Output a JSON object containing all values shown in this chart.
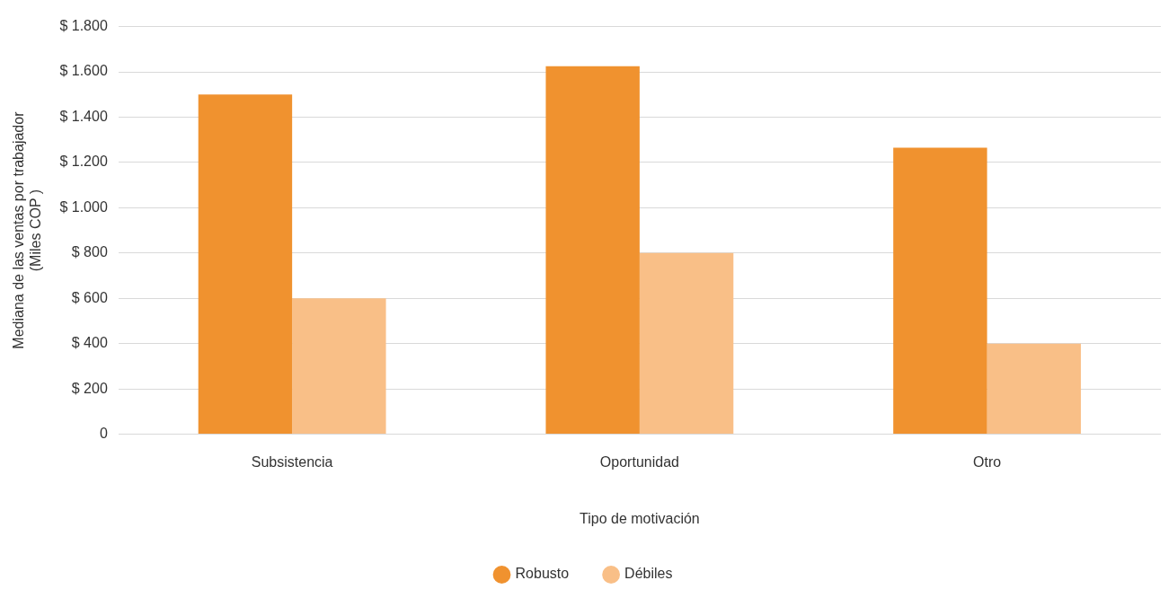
{
  "chart_data": {
    "type": "bar",
    "xlabel": "Tipo de motivación",
    "ylabel": "Mediana de las ventas por trabajador\n(Miles COP )",
    "categories": [
      "Subsistencia",
      "Oportunidad",
      "Otro"
    ],
    "series": [
      {
        "name": "Robusto",
        "color": "#f0922f",
        "values": [
          1500,
          1625,
          1265
        ]
      },
      {
        "name": "Débiles",
        "color": "#f9bf87",
        "values": [
          600,
          800,
          400
        ]
      }
    ],
    "ylim": [
      0,
      1800
    ],
    "yticks": [
      {
        "value": 0,
        "label": "0"
      },
      {
        "value": 200,
        "label": "$ 200"
      },
      {
        "value": 400,
        "label": "$ 400"
      },
      {
        "value": 600,
        "label": "$ 600"
      },
      {
        "value": 800,
        "label": "$ 800"
      },
      {
        "value": 1000,
        "label": "$ 1.000"
      },
      {
        "value": 1200,
        "label": "$ 1.200"
      },
      {
        "value": 1400,
        "label": "$ 1.400"
      },
      {
        "value": 1600,
        "label": "$ 1.600"
      },
      {
        "value": 1800,
        "label": "$ 1.800"
      }
    ],
    "grid": "y",
    "legend": "bottom"
  }
}
